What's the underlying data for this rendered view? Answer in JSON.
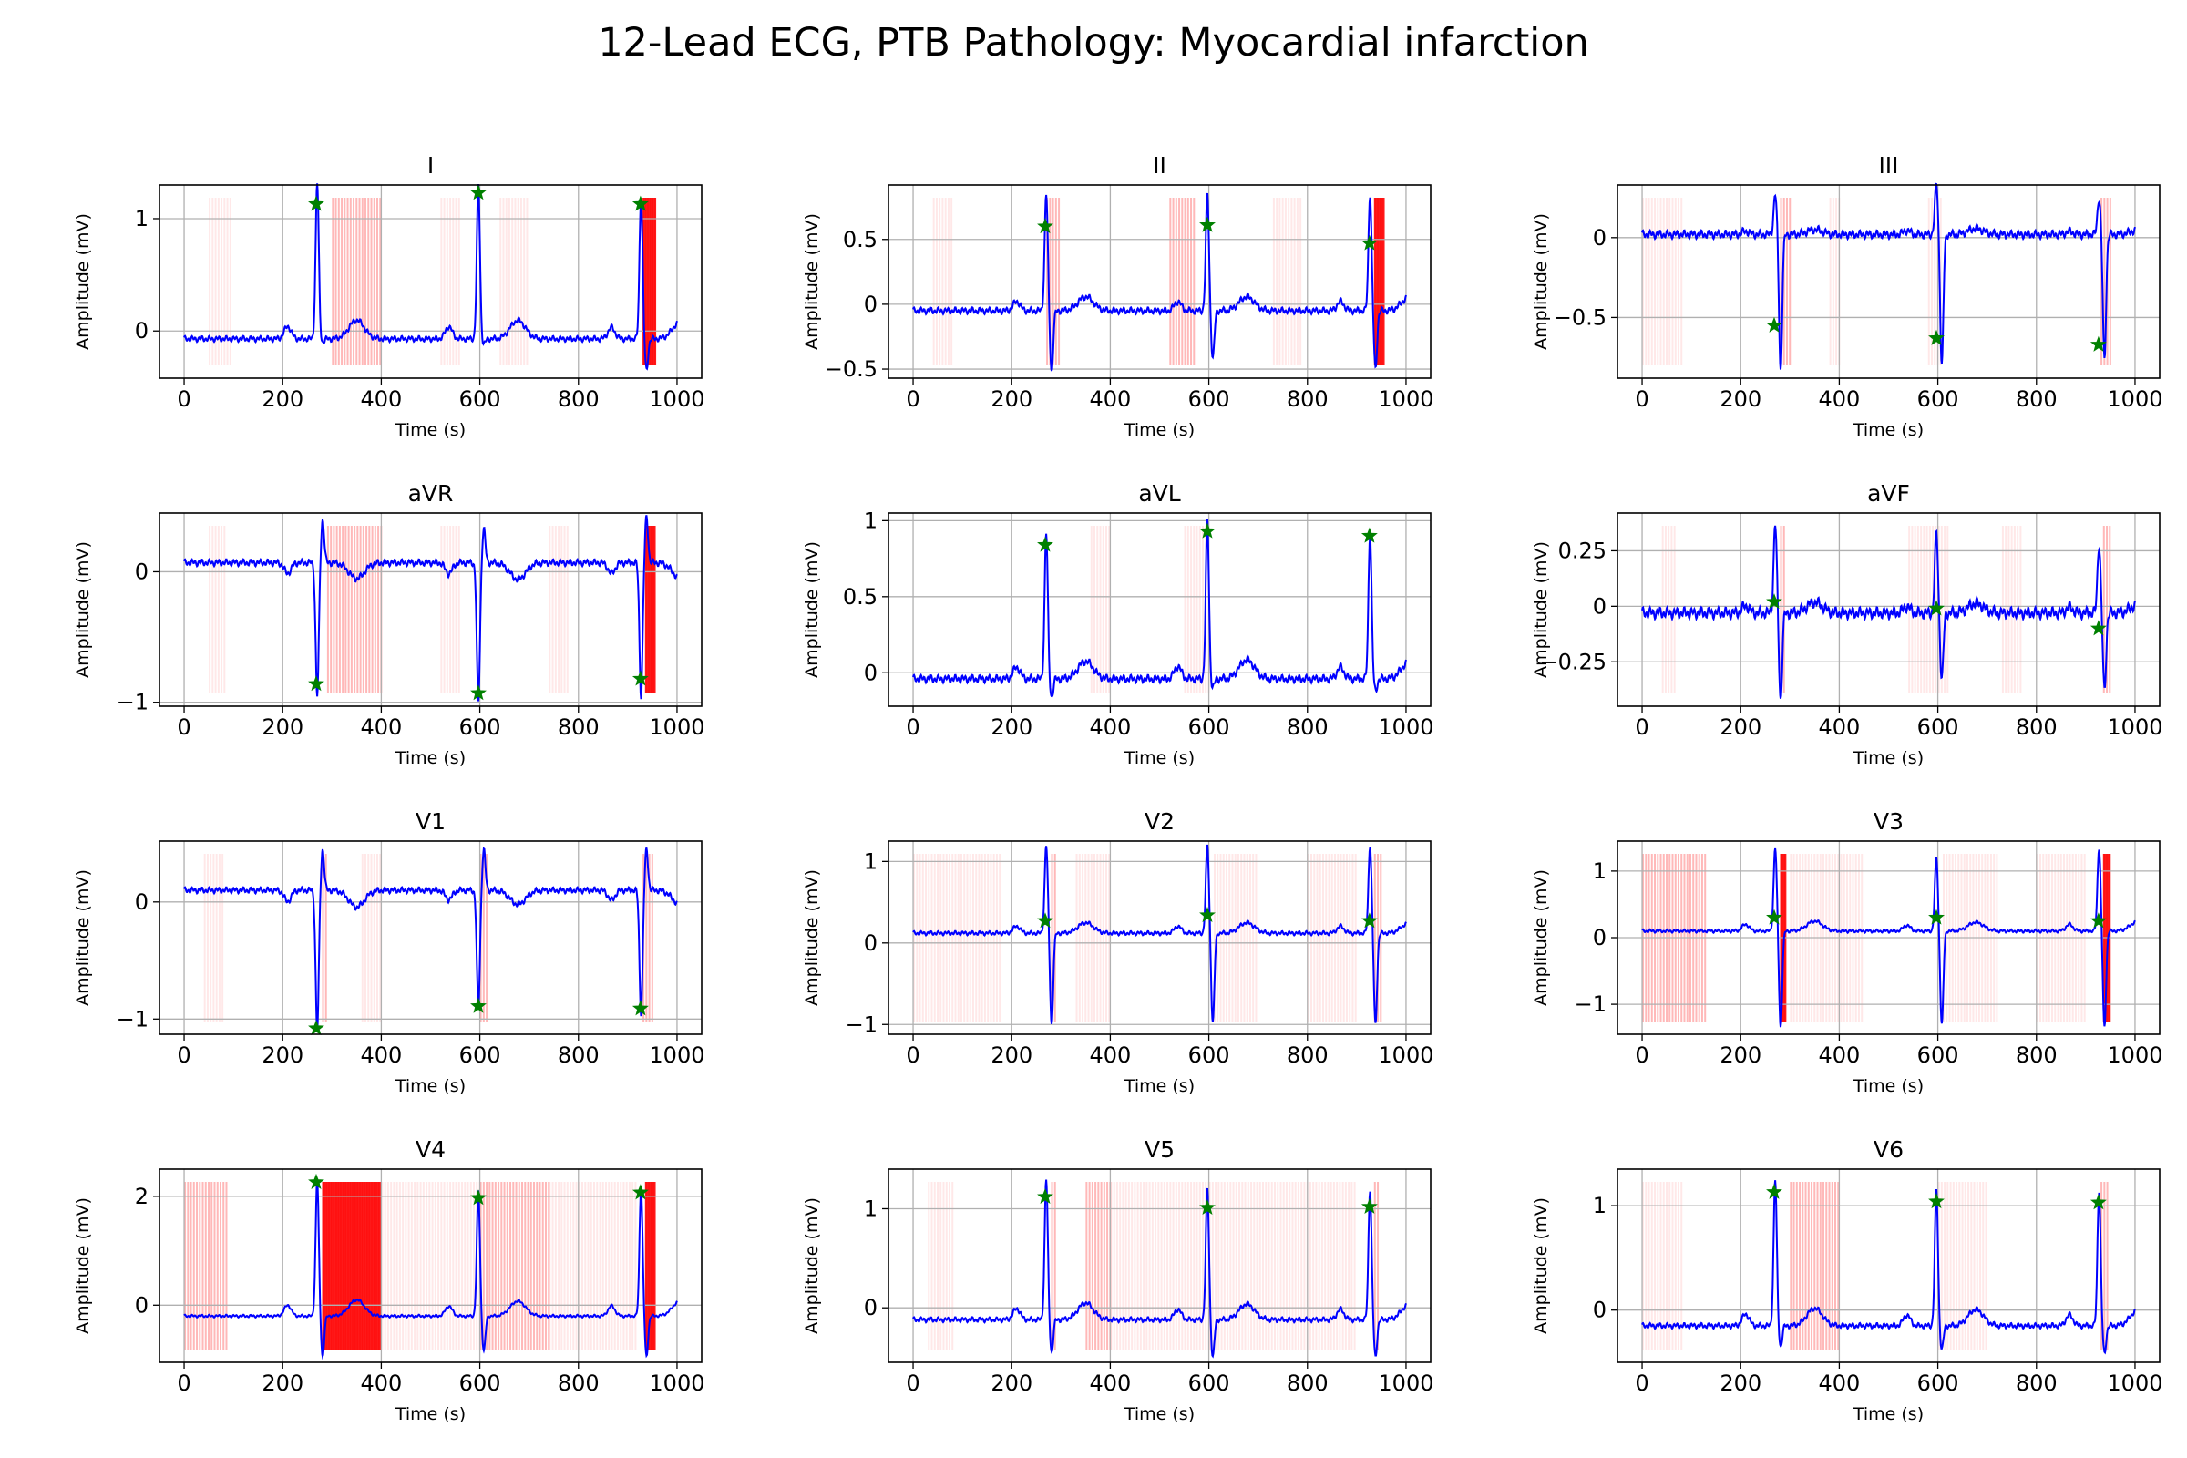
{
  "title": "12-Lead ECG, PTB Pathology: Myocardial infarction",
  "colors": {
    "signal": "#0000ff",
    "peak_marker": "#008000",
    "highlight": "#ff0000",
    "grid": "#b0b0b0",
    "axes": "#000000"
  },
  "chart_data": [
    {
      "type": "line",
      "title": "I",
      "xlabel": "Time (s)",
      "ylabel": "Amplitude (mV)",
      "xlim": [
        -50,
        1050
      ],
      "ylim": [
        -0.42,
        1.3
      ],
      "yticks": [
        0,
        1
      ],
      "xticks": [
        0,
        200,
        400,
        600,
        800,
        1000
      ],
      "grid": true,
      "baseline": -0.07,
      "beats": [
        {
          "x": 270,
          "peak": 1.32,
          "trough": -0.1
        },
        {
          "x": 597,
          "peak": 1.3,
          "trough": -0.12
        },
        {
          "x": 927,
          "peak": 1.2,
          "trough": -0.35
        }
      ],
      "peaks_marked": [
        {
          "x": 268,
          "y": 1.13
        },
        {
          "x": 597,
          "y": 1.23
        },
        {
          "x": 926,
          "y": 1.13
        }
      ],
      "highlight_bands": [
        [
          50,
          95,
          "light"
        ],
        [
          300,
          400,
          "medium"
        ],
        [
          520,
          560,
          "light"
        ],
        [
          640,
          700,
          "light"
        ],
        [
          930,
          955,
          "strong"
        ]
      ]
    },
    {
      "type": "line",
      "title": "II",
      "xlabel": "Time (s)",
      "ylabel": "Amplitude (mV)",
      "xlim": [
        -50,
        1050
      ],
      "ylim": [
        -0.57,
        0.92
      ],
      "yticks": [
        -0.5,
        0.0,
        0.5
      ],
      "xticks": [
        0,
        200,
        400,
        600,
        800,
        1000
      ],
      "grid": true,
      "baseline": -0.05,
      "beats": [
        {
          "x": 270,
          "peak": 0.85,
          "trough": -0.52
        },
        {
          "x": 597,
          "peak": 0.85,
          "trough": -0.42
        },
        {
          "x": 927,
          "peak": 0.85,
          "trough": -0.5
        }
      ],
      "peaks_marked": [
        {
          "x": 268,
          "y": 0.6
        },
        {
          "x": 597,
          "y": 0.61
        },
        {
          "x": 926,
          "y": 0.47
        }
      ],
      "highlight_bands": [
        [
          40,
          80,
          "light"
        ],
        [
          270,
          295,
          "medium"
        ],
        [
          520,
          570,
          "medium"
        ],
        [
          730,
          790,
          "light"
        ],
        [
          935,
          955,
          "strong"
        ]
      ]
    },
    {
      "type": "line",
      "title": "III",
      "xlabel": "Time (s)",
      "ylabel": "Amplitude (mV)",
      "xlim": [
        -50,
        1050
      ],
      "ylim": [
        -0.88,
        0.33
      ],
      "yticks": [
        -0.5,
        0.0
      ],
      "xticks": [
        0,
        200,
        400,
        600,
        800,
        1000
      ],
      "grid": true,
      "baseline": 0.02,
      "beats": [
        {
          "x": 270,
          "peak": 0.27,
          "trough": -0.83
        },
        {
          "x": 597,
          "peak": 0.33,
          "trough": -0.8
        },
        {
          "x": 927,
          "peak": 0.25,
          "trough": -0.77
        }
      ],
      "peaks_marked": [
        {
          "x": 268,
          "y": -0.55
        },
        {
          "x": 597,
          "y": -0.63
        },
        {
          "x": 926,
          "y": -0.67
        }
      ],
      "highlight_bands": [
        [
          0,
          80,
          "light"
        ],
        [
          280,
          300,
          "medium"
        ],
        [
          380,
          400,
          "light"
        ],
        [
          580,
          610,
          "light"
        ],
        [
          930,
          950,
          "medium"
        ]
      ]
    },
    {
      "type": "line",
      "title": "aVR",
      "xlabel": "Time (s)",
      "ylabel": "Amplitude (mV)",
      "xlim": [
        -50,
        1050
      ],
      "ylim": [
        -1.03,
        0.45
      ],
      "yticks": [
        -1,
        0
      ],
      "xticks": [
        0,
        200,
        400,
        600,
        800,
        1000
      ],
      "grid": true,
      "baseline": 0.07,
      "beats": [
        {
          "x": 270,
          "peak": -0.95,
          "trough": 0.4
        },
        {
          "x": 597,
          "peak": -1.0,
          "trough": 0.33
        },
        {
          "x": 927,
          "peak": -0.95,
          "trough": 0.42
        }
      ],
      "peaks_marked": [
        {
          "x": 268,
          "y": -0.86
        },
        {
          "x": 597,
          "y": -0.93
        },
        {
          "x": 926,
          "y": -0.82
        }
      ],
      "highlight_bands": [
        [
          50,
          85,
          "light"
        ],
        [
          290,
          400,
          "medium"
        ],
        [
          520,
          560,
          "light"
        ],
        [
          740,
          780,
          "light"
        ],
        [
          935,
          955,
          "strong"
        ]
      ]
    },
    {
      "type": "line",
      "title": "aVL",
      "xlabel": "Time (s)",
      "ylabel": "Amplitude (mV)",
      "xlim": [
        -50,
        1050
      ],
      "ylim": [
        -0.22,
        1.05
      ],
      "yticks": [
        0.0,
        0.5,
        1.0
      ],
      "xticks": [
        0,
        200,
        400,
        600,
        800,
        1000
      ],
      "grid": true,
      "baseline": -0.04,
      "beats": [
        {
          "x": 270,
          "peak": 0.92,
          "trough": -0.16
        },
        {
          "x": 597,
          "peak": 1.0,
          "trough": -0.1
        },
        {
          "x": 927,
          "peak": 0.92,
          "trough": -0.12
        }
      ],
      "peaks_marked": [
        {
          "x": 268,
          "y": 0.84
        },
        {
          "x": 597,
          "y": 0.93
        },
        {
          "x": 926,
          "y": 0.9
        }
      ],
      "highlight_bands": [
        [
          360,
          400,
          "light"
        ],
        [
          550,
          600,
          "light"
        ]
      ]
    },
    {
      "type": "line",
      "title": "aVF",
      "xlabel": "Time (s)",
      "ylabel": "Amplitude (mV)",
      "xlim": [
        -50,
        1050
      ],
      "ylim": [
        -0.45,
        0.42
      ],
      "yticks": [
        -0.25,
        0.0,
        0.25
      ],
      "xticks": [
        0,
        200,
        400,
        600,
        800,
        1000
      ],
      "grid": true,
      "baseline": -0.03,
      "beats": [
        {
          "x": 270,
          "peak": 0.37,
          "trough": -0.42
        },
        {
          "x": 597,
          "peak": 0.33,
          "trough": -0.33
        },
        {
          "x": 927,
          "peak": 0.28,
          "trough": -0.38
        }
      ],
      "peaks_marked": [
        {
          "x": 268,
          "y": 0.02
        },
        {
          "x": 597,
          "y": -0.01
        },
        {
          "x": 926,
          "y": -0.1
        }
      ],
      "highlight_bands": [
        [
          40,
          70,
          "light"
        ],
        [
          280,
          290,
          "medium"
        ],
        [
          540,
          620,
          "light"
        ],
        [
          730,
          770,
          "light"
        ],
        [
          935,
          950,
          "medium"
        ]
      ]
    },
    {
      "type": "line",
      "title": "V1",
      "xlabel": "Time (s)",
      "ylabel": "Amplitude (mV)",
      "xlim": [
        -50,
        1050
      ],
      "ylim": [
        -1.13,
        0.52
      ],
      "yticks": [
        -1,
        0
      ],
      "xticks": [
        0,
        200,
        400,
        600,
        800,
        1000
      ],
      "grid": true,
      "baseline": 0.1,
      "beats": [
        {
          "x": 270,
          "peak": -1.1,
          "trough": 0.45
        },
        {
          "x": 597,
          "peak": -0.9,
          "trough": 0.45
        },
        {
          "x": 927,
          "peak": -0.95,
          "trough": 0.45
        }
      ],
      "peaks_marked": [
        {
          "x": 268,
          "y": -1.08
        },
        {
          "x": 597,
          "y": -0.89
        },
        {
          "x": 926,
          "y": -0.91
        }
      ],
      "highlight_bands": [
        [
          40,
          80,
          "light"
        ],
        [
          280,
          290,
          "medium"
        ],
        [
          360,
          400,
          "light"
        ],
        [
          600,
          615,
          "medium"
        ],
        [
          930,
          950,
          "medium"
        ]
      ]
    },
    {
      "type": "line",
      "title": "V2",
      "xlabel": "Time (s)",
      "ylabel": "Amplitude (mV)",
      "xlim": [
        -50,
        1050
      ],
      "ylim": [
        -1.12,
        1.25
      ],
      "yticks": [
        -1,
        0,
        1
      ],
      "xticks": [
        0,
        200,
        400,
        600,
        800,
        1000
      ],
      "grid": true,
      "baseline": 0.12,
      "beats": [
        {
          "x": 270,
          "peak": 1.2,
          "trough": -1.0
        },
        {
          "x": 597,
          "peak": 1.2,
          "trough": -0.98
        },
        {
          "x": 927,
          "peak": 1.2,
          "trough": -1.0
        }
      ],
      "peaks_marked": [
        {
          "x": 268,
          "y": 0.27
        },
        {
          "x": 597,
          "y": 0.34
        },
        {
          "x": 926,
          "y": 0.27
        }
      ],
      "highlight_bands": [
        [
          0,
          180,
          "light"
        ],
        [
          280,
          290,
          "medium"
        ],
        [
          330,
          400,
          "light"
        ],
        [
          610,
          700,
          "light"
        ],
        [
          800,
          900,
          "light"
        ],
        [
          935,
          950,
          "medium"
        ]
      ]
    },
    {
      "type": "line",
      "title": "V3",
      "xlabel": "Time (s)",
      "ylabel": "Amplitude (mV)",
      "xlim": [
        -50,
        1050
      ],
      "ylim": [
        -1.45,
        1.45
      ],
      "yticks": [
        -1,
        0,
        1
      ],
      "xticks": [
        0,
        200,
        400,
        600,
        800,
        1000
      ],
      "grid": true,
      "baseline": 0.1,
      "beats": [
        {
          "x": 270,
          "peak": 1.35,
          "trough": -1.35
        },
        {
          "x": 597,
          "peak": 1.2,
          "trough": -1.3
        },
        {
          "x": 927,
          "peak": 1.35,
          "trough": -1.35
        }
      ],
      "peaks_marked": [
        {
          "x": 268,
          "y": 0.3
        },
        {
          "x": 597,
          "y": 0.3
        },
        {
          "x": 926,
          "y": 0.25
        }
      ],
      "highlight_bands": [
        [
          0,
          130,
          "medium"
        ],
        [
          280,
          290,
          "strong"
        ],
        [
          300,
          450,
          "light"
        ],
        [
          610,
          720,
          "light"
        ],
        [
          800,
          900,
          "light"
        ],
        [
          935,
          950,
          "strong"
        ]
      ]
    },
    {
      "type": "line",
      "title": "V4",
      "xlabel": "Time (s)",
      "ylabel": "Amplitude (mV)",
      "xlim": [
        -50,
        1050
      ],
      "ylim": [
        -1.05,
        2.5
      ],
      "yticks": [
        0,
        2
      ],
      "xticks": [
        0,
        200,
        400,
        600,
        800,
        1000
      ],
      "grid": true,
      "baseline": -0.2,
      "beats": [
        {
          "x": 270,
          "peak": 2.3,
          "trough": -0.95
        },
        {
          "x": 597,
          "peak": 2.1,
          "trough": -0.85
        },
        {
          "x": 927,
          "peak": 2.15,
          "trough": -0.95
        }
      ],
      "peaks_marked": [
        {
          "x": 268,
          "y": 2.26
        },
        {
          "x": 597,
          "y": 1.97
        },
        {
          "x": 926,
          "y": 2.07
        }
      ],
      "highlight_bands": [
        [
          0,
          90,
          "medium"
        ],
        [
          280,
          400,
          "strong"
        ],
        [
          400,
          600,
          "light"
        ],
        [
          600,
          740,
          "medium"
        ],
        [
          740,
          920,
          "light"
        ],
        [
          935,
          955,
          "strong"
        ]
      ]
    },
    {
      "type": "line",
      "title": "V5",
      "xlabel": "Time (s)",
      "ylabel": "Amplitude (mV)",
      "xlim": [
        -50,
        1050
      ],
      "ylim": [
        -0.55,
        1.4
      ],
      "yticks": [
        0,
        1
      ],
      "xticks": [
        0,
        200,
        400,
        600,
        800,
        1000
      ],
      "grid": true,
      "baseline": -0.12,
      "beats": [
        {
          "x": 270,
          "peak": 1.3,
          "trough": -0.45
        },
        {
          "x": 597,
          "peak": 1.2,
          "trough": -0.5
        },
        {
          "x": 927,
          "peak": 1.2,
          "trough": -0.5
        }
      ],
      "peaks_marked": [
        {
          "x": 268,
          "y": 1.12
        },
        {
          "x": 597,
          "y": 1.01
        },
        {
          "x": 926,
          "y": 1.02
        }
      ],
      "highlight_bands": [
        [
          30,
          80,
          "light"
        ],
        [
          280,
          290,
          "medium"
        ],
        [
          350,
          400,
          "medium"
        ],
        [
          400,
          600,
          "light"
        ],
        [
          600,
          900,
          "light"
        ],
        [
          935,
          945,
          "medium"
        ]
      ]
    },
    {
      "type": "line",
      "title": "V6",
      "xlabel": "Time (s)",
      "ylabel": "Amplitude (mV)",
      "xlim": [
        -50,
        1050
      ],
      "ylim": [
        -0.5,
        1.35
      ],
      "yticks": [
        0,
        1
      ],
      "xticks": [
        0,
        200,
        400,
        600,
        800,
        1000
      ],
      "grid": true,
      "baseline": -0.15,
      "beats": [
        {
          "x": 270,
          "peak": 1.25,
          "trough": -0.35
        },
        {
          "x": 597,
          "peak": 1.15,
          "trough": -0.38
        },
        {
          "x": 927,
          "peak": 1.15,
          "trough": -0.42
        }
      ],
      "peaks_marked": [
        {
          "x": 268,
          "y": 1.13
        },
        {
          "x": 597,
          "y": 1.04
        },
        {
          "x": 926,
          "y": 1.03
        }
      ],
      "highlight_bands": [
        [
          0,
          80,
          "light"
        ],
        [
          300,
          400,
          "medium"
        ],
        [
          600,
          700,
          "light"
        ],
        [
          930,
          945,
          "medium"
        ]
      ]
    }
  ]
}
